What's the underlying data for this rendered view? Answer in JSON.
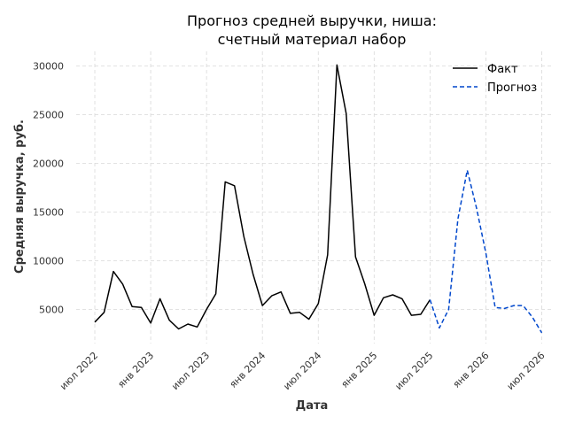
{
  "chart_data": {
    "type": "line",
    "title": [
      "Прогноз средней выручки, ниша:",
      "счетный материал набор"
    ],
    "xlabel": "Дата",
    "ylabel": "Средняя выручка, руб.",
    "x_ticks": [
      "июл 2022",
      "янв 2023",
      "июл 2023",
      "янв 2024",
      "июл 2024",
      "янв 2025",
      "июл 2025",
      "янв 2026",
      "июл 2026"
    ],
    "y_ticks": [
      5000,
      10000,
      15000,
      20000,
      25000,
      30000
    ],
    "xlim": [
      "2022-05-01",
      "2026-08-01"
    ],
    "ylim": [
      1500,
      31500
    ],
    "grid": true,
    "legend_position": "top-right",
    "series": [
      {
        "name": "Факт",
        "color": "#000000",
        "style": "solid",
        "x": [
          "2022-07-01",
          "2022-08-01",
          "2022-09-01",
          "2022-10-01",
          "2022-11-01",
          "2022-12-01",
          "2023-01-01",
          "2023-02-01",
          "2023-03-01",
          "2023-04-01",
          "2023-05-01",
          "2023-06-01",
          "2023-07-01",
          "2023-08-01",
          "2023-09-01",
          "2023-10-01",
          "2023-11-01",
          "2023-12-01",
          "2024-01-01",
          "2024-02-01",
          "2024-03-01",
          "2024-04-01",
          "2024-05-01",
          "2024-06-01",
          "2024-07-01",
          "2024-08-01",
          "2024-09-01",
          "2024-10-01",
          "2024-11-01",
          "2024-12-01",
          "2025-01-01",
          "2025-02-01",
          "2025-03-01",
          "2025-04-01",
          "2025-05-01",
          "2025-06-01",
          "2025-07-01"
        ],
        "y": [
          3700,
          4700,
          8900,
          7600,
          5300,
          5200,
          3600,
          6100,
          3900,
          3000,
          3500,
          3200,
          5000,
          6600,
          18100,
          17700,
          12500,
          8600,
          5400,
          6400,
          6800,
          4600,
          4700,
          4000,
          5600,
          10600,
          30100,
          25100,
          10400,
          7600,
          4400,
          6200,
          6500,
          6100,
          4400,
          4500,
          6000
        ]
      },
      {
        "name": "Прогноз",
        "color": "#0047cc",
        "style": "dashed",
        "x": [
          "2025-07-01",
          "2025-08-01",
          "2025-09-01",
          "2025-10-01",
          "2025-11-01",
          "2025-12-01",
          "2026-01-01",
          "2026-02-01",
          "2026-03-01",
          "2026-04-01",
          "2026-05-01",
          "2026-06-01",
          "2026-07-01"
        ],
        "y": [
          6000,
          3100,
          5000,
          14300,
          19300,
          15400,
          10800,
          5200,
          5100,
          5400,
          5400,
          4200,
          2600
        ]
      }
    ]
  }
}
